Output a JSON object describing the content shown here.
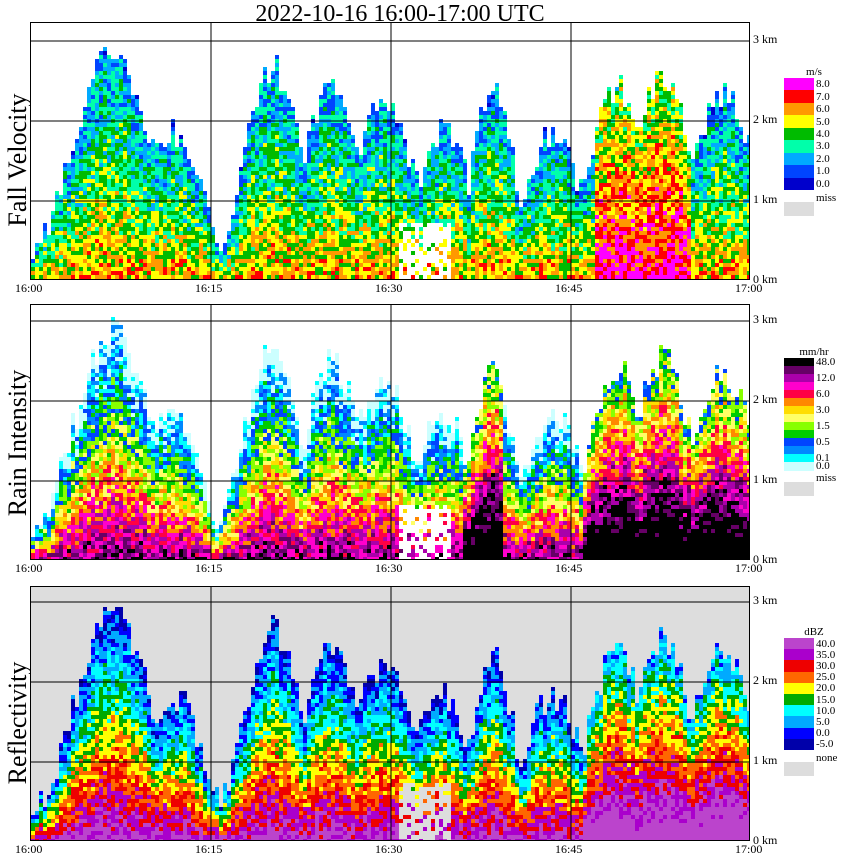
{
  "title": "2022-10-16   16:00-17:00 UTC",
  "x_ticks": [
    "16:00",
    "16:15",
    "16:30",
    "16:45",
    "17:00"
  ],
  "y_ticks": [
    "0 km",
    "1 km",
    "2 km",
    "3 km"
  ],
  "panels": [
    {
      "label": "Fall Velocity",
      "legend": {
        "unit": "m/s",
        "levels": [
          {
            "label": "8.0",
            "color": "#ff00ff"
          },
          {
            "label": "7.0",
            "color": "#ff0000"
          },
          {
            "label": "6.0",
            "color": "#ff9900"
          },
          {
            "label": "5.0",
            "color": "#ffff00"
          },
          {
            "label": "4.0",
            "color": "#00bb00"
          },
          {
            "label": "3.0",
            "color": "#00ffaa"
          },
          {
            "label": "2.0",
            "color": "#00aaff"
          },
          {
            "label": "1.0",
            "color": "#0044ff"
          },
          {
            "label": "0.0",
            "color": "#0000cc"
          }
        ],
        "missing": {
          "label": "miss",
          "color": "#dddddd"
        }
      }
    },
    {
      "label": "Rain Intensity",
      "legend": {
        "unit": "mm/hr",
        "levels": [
          {
            "label": "48.0",
            "color": "#000000"
          },
          {
            "label": "",
            "color": "#660066"
          },
          {
            "label": "12.0",
            "color": "#aa00aa"
          },
          {
            "label": "",
            "color": "#ff00cc"
          },
          {
            "label": "6.0",
            "color": "#ff0044"
          },
          {
            "label": "",
            "color": "#ff8800"
          },
          {
            "label": "3.0",
            "color": "#ffdd00"
          },
          {
            "label": "",
            "color": "#ffff66"
          },
          {
            "label": "1.5",
            "color": "#88ff00"
          },
          {
            "label": "",
            "color": "#00cc00"
          },
          {
            "label": "0.5",
            "color": "#0044ff"
          },
          {
            "label": "",
            "color": "#0088ff"
          },
          {
            "label": "0.1",
            "color": "#00ffff"
          },
          {
            "label": "0.0",
            "color": "#ccffff"
          }
        ],
        "missing": {
          "label": "miss",
          "color": "#dddddd"
        }
      }
    },
    {
      "label": "Reflectivity",
      "legend": {
        "unit": "dBZ",
        "levels": [
          {
            "label": "40.0",
            "color": "#bb44cc"
          },
          {
            "label": "35.0",
            "color": "#aa00cc"
          },
          {
            "label": "30.0",
            "color": "#ee0000"
          },
          {
            "label": "25.0",
            "color": "#ff6600"
          },
          {
            "label": "20.0",
            "color": "#ffff00"
          },
          {
            "label": "15.0",
            "color": "#00aa00"
          },
          {
            "label": "10.0",
            "color": "#00ffff"
          },
          {
            "label": "5.0",
            "color": "#00aaff"
          },
          {
            "label": "0.0",
            "color": "#0000ff"
          },
          {
            "label": "-5.0",
            "color": "#0000aa"
          }
        ],
        "missing": {
          "label": "none",
          "color": "#dddddd"
        }
      }
    }
  ],
  "chart_data": [
    {
      "type": "heatmap",
      "title": "2022-10-16   16:00-17:00 UTC",
      "ylabel": "Fall Velocity",
      "xlim": [
        "16:00",
        "17:00"
      ],
      "ylim_km": [
        0,
        3.2
      ],
      "colorbar_unit": "m/s"
    },
    {
      "type": "heatmap",
      "ylabel": "Rain Intensity",
      "xlim": [
        "16:00",
        "17:00"
      ],
      "ylim_km": [
        0,
        3.2
      ],
      "colorbar_unit": "mm/hr"
    },
    {
      "type": "heatmap",
      "ylabel": "Reflectivity",
      "xlim": [
        "16:00",
        "17:00"
      ],
      "ylim_km": [
        0,
        3.2
      ],
      "colorbar_unit": "dBZ"
    }
  ]
}
